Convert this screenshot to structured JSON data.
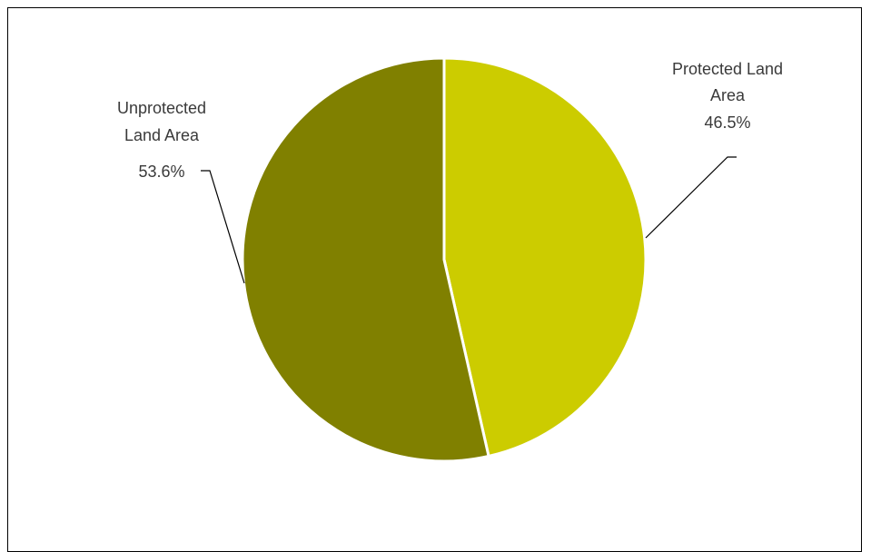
{
  "chart_data": {
    "type": "pie",
    "title": "",
    "slices": [
      {
        "label": "Protected Land Area",
        "value": 46.5,
        "value_label": "46.5%",
        "color": "#CCCC00"
      },
      {
        "label": "Unprotected Land Area",
        "value": 53.6,
        "value_label": "53.6%",
        "color": "#808000"
      }
    ],
    "start_angle": "12 o'clock",
    "direction": "clockwise",
    "legend": "none",
    "data_labels": "outside with leader lines"
  },
  "labels": {
    "protected": {
      "line1": "Protected Land",
      "line2": "Area",
      "line3": "46.5%"
    },
    "unprotected": {
      "line1": "Unprotected",
      "line2": "Land Area",
      "line3": "53.6%"
    }
  }
}
